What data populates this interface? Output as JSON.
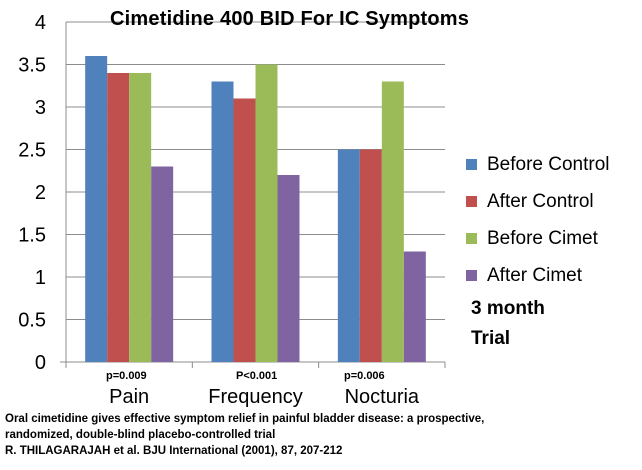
{
  "chart_data": {
    "type": "bar",
    "title": "Cimetidine 400 BID For IC Symptoms",
    "categories": [
      "Pain",
      "Frequency",
      "Nocturia"
    ],
    "series": [
      {
        "name": "Before Control",
        "color": "#4F81BD",
        "values": [
          3.6,
          3.3,
          2.5
        ]
      },
      {
        "name": "After Control",
        "color": "#C0504D",
        "values": [
          3.4,
          3.1,
          2.5
        ]
      },
      {
        "name": "Before Cimet",
        "color": "#9BBB59",
        "values": [
          3.4,
          3.5,
          3.3
        ]
      },
      {
        "name": "After Cimet",
        "color": "#8064A2",
        "values": [
          2.3,
          2.2,
          1.3
        ]
      }
    ],
    "ylim": [
      0,
      4
    ],
    "yticks": [
      "0",
      "0.5",
      "1",
      "1.5",
      "2",
      "2.5",
      "3",
      "3.5",
      "4"
    ],
    "grid": true,
    "legend_position": "right",
    "annotations": {
      "p_values": [
        "p=0.009",
        "P<0.001",
        "p=0.006"
      ],
      "note_line1": "3 month",
      "note_line2": "Trial"
    }
  },
  "citation": {
    "line1": "Oral cimetidine gives effective symptom relief in painful bladder disease: a prospective,",
    "line2": "randomized, double-blind placebo-controlled trial",
    "line3": "R. THILAGARAJAH et al. BJU International (2001), 87, 207-212"
  }
}
